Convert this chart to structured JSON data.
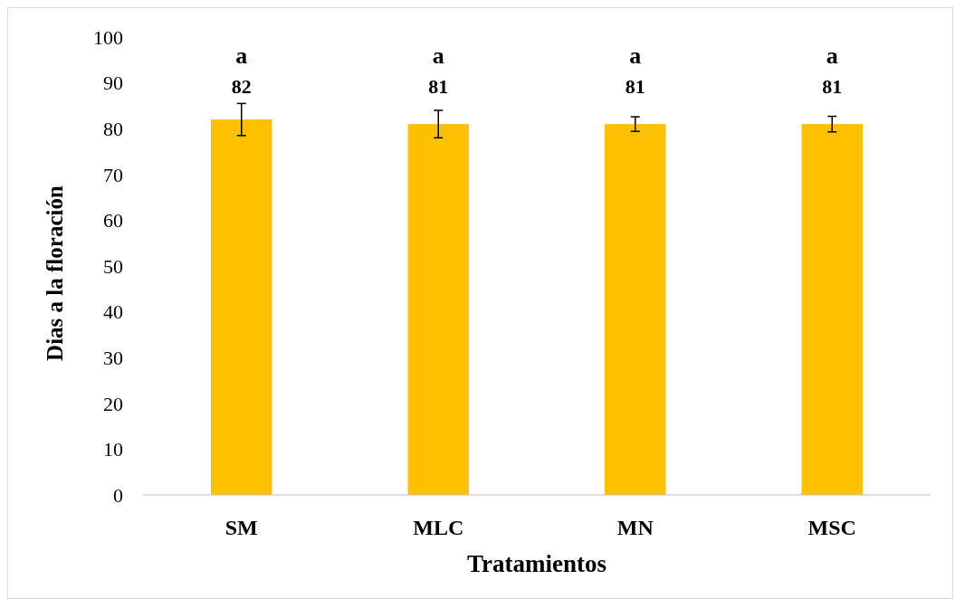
{
  "chart_data": {
    "type": "bar",
    "xlabel": "Tratamientos",
    "ylabel": "Dias a la floración",
    "categories": [
      "SM",
      "MLC",
      "MN",
      "MSC"
    ],
    "values": [
      82,
      81,
      81,
      81
    ],
    "errors": [
      3.5,
      3,
      1.6,
      1.7
    ],
    "color": "#ffc000",
    "ylim": [
      0,
      100
    ],
    "yticks": [
      0,
      10,
      20,
      30,
      40,
      50,
      60,
      70,
      80,
      90,
      100
    ],
    "data_labels": true,
    "annotations": [
      "a",
      "a",
      "a",
      "a"
    ]
  }
}
